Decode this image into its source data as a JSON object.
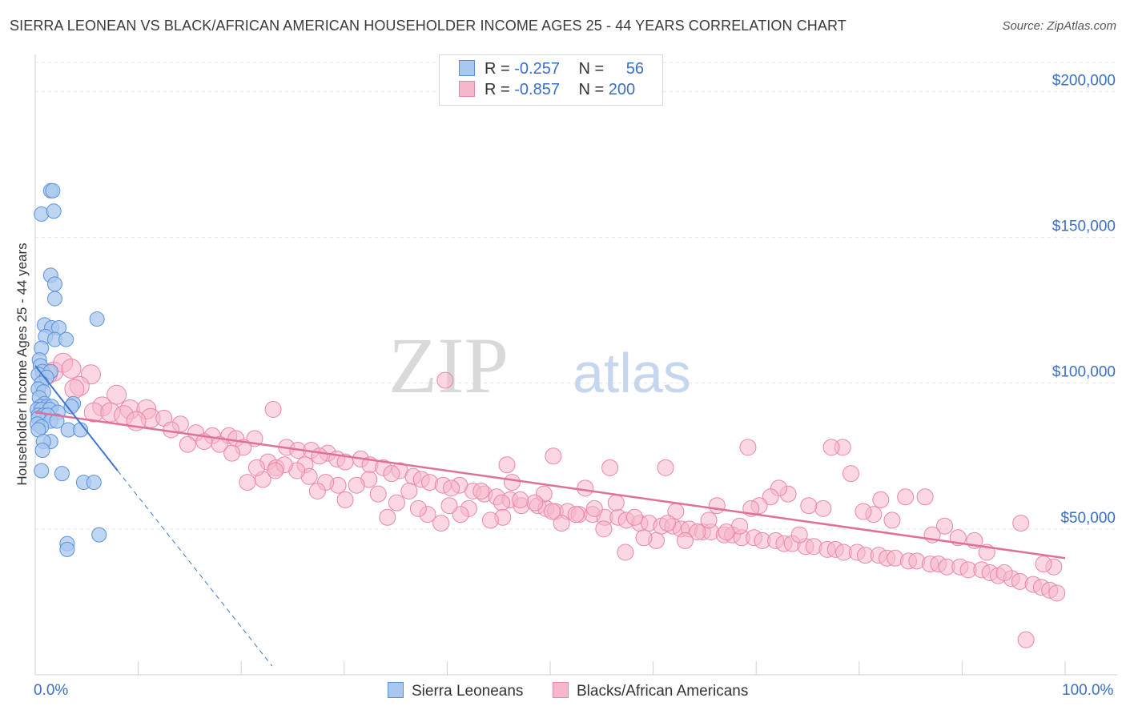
{
  "header": {
    "title": "SIERRA LEONEAN VS BLACK/AFRICAN AMERICAN HOUSEHOLDER INCOME AGES 25 - 44 YEARS CORRELATION CHART",
    "source": "Source: ZipAtlas.com"
  },
  "legend": {
    "rows": [
      {
        "r_label": "R =",
        "r_value": "-0.257",
        "n_label": "N =",
        "n_value": "56"
      },
      {
        "r_label": "R =",
        "r_value": "-0.857",
        "n_label": "N =",
        "n_value": "200"
      }
    ],
    "bottom": [
      "Sierra Leoneans",
      "Blacks/African Americans"
    ]
  },
  "colors": {
    "blue_fill": "#a9c8ef",
    "blue_stroke": "#5a8fd8",
    "blue_line": "#3a78d0",
    "pink_fill": "#f6b6cb",
    "pink_stroke": "#e886a6",
    "pink_line": "#e0709a",
    "axis_text": "#3a6fc8",
    "grid": "#e3e3e3"
  },
  "chart_data": {
    "type": "scatter",
    "title": "SIERRA LEONEAN VS BLACK/AFRICAN AMERICAN HOUSEHOLDER INCOME AGES 25 - 44 YEARS CORRELATION CHART",
    "ylabel": "Householder Income Ages 25 - 44 years",
    "xlabel": "",
    "x_tick_labels": [
      "0.0%",
      "100.0%"
    ],
    "y_ticks": [
      50000,
      100000,
      150000,
      200000
    ],
    "y_tick_labels": [
      "$50,000",
      "$100,000",
      "$150,000",
      "$200,000"
    ],
    "xlim": [
      0,
      100
    ],
    "ylim": [
      0,
      210000
    ],
    "grid": true,
    "legend_position": "top-center",
    "watermark": "ZIPatlas",
    "series": [
      {
        "name": "Sierra Leoneans",
        "r": -0.257,
        "n": 56,
        "trend": {
          "x0": 0,
          "y0": 106000,
          "x1": 8,
          "y1": 70000,
          "dashed_to_x": 23,
          "dashed_to_y": 3000
        },
        "points": [
          [
            1.5,
            166000
          ],
          [
            1.7,
            166000
          ],
          [
            0.6,
            158000
          ],
          [
            1.8,
            159000
          ],
          [
            1.5,
            137000
          ],
          [
            1.9,
            134000
          ],
          [
            1.9,
            129000
          ],
          [
            6,
            122000
          ],
          [
            0.9,
            120000
          ],
          [
            1.6,
            119000
          ],
          [
            2.3,
            119000
          ],
          [
            1,
            116000
          ],
          [
            1.9,
            115000
          ],
          [
            3,
            115000
          ],
          [
            0.6,
            112000
          ],
          [
            0.4,
            108000
          ],
          [
            0.5,
            106000
          ],
          [
            0.7,
            104000
          ],
          [
            1.5,
            104000
          ],
          [
            0.3,
            103000
          ],
          [
            1.1,
            102000
          ],
          [
            0.6,
            100000
          ],
          [
            0.3,
            98000
          ],
          [
            0.8,
            97000
          ],
          [
            0.4,
            95000
          ],
          [
            0.9,
            93000
          ],
          [
            3.7,
            93000
          ],
          [
            0.5,
            92000
          ],
          [
            1.1,
            92000
          ],
          [
            1.6,
            92000
          ],
          [
            0.2,
            91000
          ],
          [
            0.6,
            91000
          ],
          [
            1.4,
            91000
          ],
          [
            2.2,
            90000
          ],
          [
            0.3,
            89000
          ],
          [
            0.8,
            89000
          ],
          [
            1.2,
            89000
          ],
          [
            0.3,
            88000
          ],
          [
            1.5,
            87000
          ],
          [
            2.1,
            87000
          ],
          [
            0.2,
            86000
          ],
          [
            0.6,
            85000
          ],
          [
            0.3,
            84000
          ],
          [
            3.2,
            84000
          ],
          [
            4.4,
            84000
          ],
          [
            1.5,
            80000
          ],
          [
            0.8,
            80000
          ],
          [
            0.7,
            77000
          ],
          [
            0.6,
            70000
          ],
          [
            2.6,
            69000
          ],
          [
            4.7,
            66000
          ],
          [
            5.7,
            66000
          ],
          [
            6.2,
            48000
          ],
          [
            3.1,
            45000
          ],
          [
            3.1,
            43000
          ],
          [
            3.5,
            92000
          ]
        ]
      },
      {
        "name": "Blacks/African Americans",
        "r": -0.857,
        "n": 200,
        "trend": {
          "x0": 0,
          "y0": 90000,
          "x1": 100,
          "y1": 40000
        },
        "points": [
          [
            1.8,
            104000
          ],
          [
            2.7,
            107000
          ],
          [
            3.5,
            105000
          ],
          [
            1.2,
            103000
          ],
          [
            5.4,
            103000
          ],
          [
            4.3,
            99000
          ],
          [
            3.8,
            98000
          ],
          [
            7.9,
            96000
          ],
          [
            23.1,
            91000
          ],
          [
            6.5,
            92000
          ],
          [
            9.2,
            91000
          ],
          [
            10.8,
            91000
          ],
          [
            5.7,
            90000
          ],
          [
            7.3,
            90000
          ],
          [
            8.6,
            89000
          ],
          [
            11.2,
            88000
          ],
          [
            12.5,
            88000
          ],
          [
            9.8,
            87000
          ],
          [
            14.1,
            86000
          ],
          [
            13.2,
            84000
          ],
          [
            15.6,
            83000
          ],
          [
            17.2,
            82000
          ],
          [
            18.8,
            82000
          ],
          [
            19.5,
            81000
          ],
          [
            21.3,
            81000
          ],
          [
            16.4,
            80000
          ],
          [
            14.8,
            79000
          ],
          [
            17.9,
            79000
          ],
          [
            20.2,
            78000
          ],
          [
            24.4,
            78000
          ],
          [
            25.5,
            77000
          ],
          [
            26.8,
            77000
          ],
          [
            28.4,
            76000
          ],
          [
            27.6,
            75000
          ],
          [
            29.3,
            74000
          ],
          [
            31.6,
            74000
          ],
          [
            30.1,
            73000
          ],
          [
            32.5,
            72000
          ],
          [
            26.2,
            72000
          ],
          [
            19.1,
            76000
          ],
          [
            22.6,
            73000
          ],
          [
            23.4,
            71000
          ],
          [
            33.8,
            71000
          ],
          [
            35.4,
            70000
          ],
          [
            34.6,
            69000
          ],
          [
            36.7,
            68000
          ],
          [
            37.5,
            67000
          ],
          [
            38.3,
            66000
          ],
          [
            39.6,
            65000
          ],
          [
            41.2,
            65000
          ],
          [
            40.4,
            64000
          ],
          [
            42.5,
            63000
          ],
          [
            43.6,
            62000
          ],
          [
            44.8,
            61000
          ],
          [
            46.1,
            60000
          ],
          [
            45.3,
            59000
          ],
          [
            47.2,
            58000
          ],
          [
            48.8,
            58000
          ],
          [
            49.6,
            57000
          ],
          [
            50.5,
            56000
          ],
          [
            51.7,
            56000
          ],
          [
            52.8,
            55000
          ],
          [
            54.1,
            55000
          ],
          [
            55.3,
            54000
          ],
          [
            56.6,
            54000
          ],
          [
            57.4,
            53000
          ],
          [
            58.7,
            52000
          ],
          [
            59.6,
            52000
          ],
          [
            60.8,
            51000
          ],
          [
            61.9,
            51000
          ],
          [
            62.7,
            50000
          ],
          [
            63.5,
            50000
          ],
          [
            64.8,
            49000
          ],
          [
            65.6,
            49000
          ],
          [
            66.9,
            48000
          ],
          [
            67.7,
            48000
          ],
          [
            68.6,
            47000
          ],
          [
            69.8,
            47000
          ],
          [
            70.6,
            46000
          ],
          [
            71.9,
            46000
          ],
          [
            72.7,
            45000
          ],
          [
            73.5,
            45000
          ],
          [
            74.8,
            44000
          ],
          [
            75.6,
            44000
          ],
          [
            76.9,
            43000
          ],
          [
            77.7,
            43000
          ],
          [
            78.5,
            42000
          ],
          [
            79.8,
            42000
          ],
          [
            80.6,
            41000
          ],
          [
            81.9,
            41000
          ],
          [
            82.7,
            40000
          ],
          [
            83.5,
            40000
          ],
          [
            84.8,
            39000
          ],
          [
            85.6,
            39000
          ],
          [
            86.9,
            38000
          ],
          [
            87.7,
            38000
          ],
          [
            88.5,
            37000
          ],
          [
            89.8,
            37000
          ],
          [
            90.6,
            36000
          ],
          [
            91.9,
            36000
          ],
          [
            92.7,
            35000
          ],
          [
            93.5,
            34000
          ],
          [
            94.8,
            33000
          ],
          [
            95.6,
            32000
          ],
          [
            96.9,
            31000
          ],
          [
            97.7,
            30000
          ],
          [
            98.5,
            29000
          ],
          [
            99.2,
            28000
          ],
          [
            96.2,
            12000
          ],
          [
            98.9,
            37000
          ],
          [
            97.9,
            38000
          ],
          [
            95.7,
            52000
          ],
          [
            94.1,
            35000
          ],
          [
            92.4,
            42000
          ],
          [
            91.2,
            46000
          ],
          [
            89.6,
            47000
          ],
          [
            88.3,
            51000
          ],
          [
            87.1,
            48000
          ],
          [
            86.4,
            61000
          ],
          [
            84.5,
            61000
          ],
          [
            83.2,
            53000
          ],
          [
            82.1,
            60000
          ],
          [
            81.4,
            55000
          ],
          [
            80.4,
            56000
          ],
          [
            79.2,
            69000
          ],
          [
            78.4,
            78000
          ],
          [
            77.3,
            78000
          ],
          [
            76.5,
            57000
          ],
          [
            75.1,
            58000
          ],
          [
            74.2,
            48000
          ],
          [
            73.1,
            62000
          ],
          [
            72.2,
            64000
          ],
          [
            71.4,
            61000
          ],
          [
            70.3,
            58000
          ],
          [
            69.5,
            57000
          ],
          [
            68.4,
            51000
          ],
          [
            67.1,
            49000
          ],
          [
            66.2,
            58000
          ],
          [
            65.4,
            53000
          ],
          [
            64.3,
            49000
          ],
          [
            63.1,
            46000
          ],
          [
            62.2,
            56000
          ],
          [
            61.4,
            52000
          ],
          [
            60.3,
            46000
          ],
          [
            59.1,
            47000
          ],
          [
            58.2,
            54000
          ],
          [
            57.3,
            42000
          ],
          [
            56.4,
            59000
          ],
          [
            55.2,
            50000
          ],
          [
            54.3,
            57000
          ],
          [
            53.4,
            64000
          ],
          [
            52.5,
            55000
          ],
          [
            51.1,
            52000
          ],
          [
            50.2,
            56000
          ],
          [
            49.4,
            62000
          ],
          [
            48.5,
            59000
          ],
          [
            47.1,
            60000
          ],
          [
            46.3,
            66000
          ],
          [
            45.4,
            54000
          ],
          [
            44.2,
            53000
          ],
          [
            43.3,
            63000
          ],
          [
            42.1,
            57000
          ],
          [
            41.3,
            55000
          ],
          [
            40.2,
            58000
          ],
          [
            39.4,
            52000
          ],
          [
            38.1,
            55000
          ],
          [
            37.2,
            57000
          ],
          [
            36.3,
            63000
          ],
          [
            35.1,
            59000
          ],
          [
            34.2,
            54000
          ],
          [
            33.3,
            62000
          ],
          [
            32.4,
            67000
          ],
          [
            31.2,
            65000
          ],
          [
            30.1,
            60000
          ],
          [
            29.4,
            65000
          ],
          [
            28.2,
            66000
          ],
          [
            27.4,
            63000
          ],
          [
            26.6,
            68000
          ],
          [
            25.4,
            70000
          ],
          [
            24.2,
            72000
          ],
          [
            23.3,
            70000
          ],
          [
            22.1,
            67000
          ],
          [
            21.5,
            71000
          ],
          [
            20.6,
            66000
          ],
          [
            45.8,
            72000
          ],
          [
            50.3,
            75000
          ],
          [
            55.8,
            71000
          ],
          [
            61.2,
            71000
          ],
          [
            69.2,
            78000
          ],
          [
            39.8,
            101000
          ]
        ]
      }
    ]
  }
}
